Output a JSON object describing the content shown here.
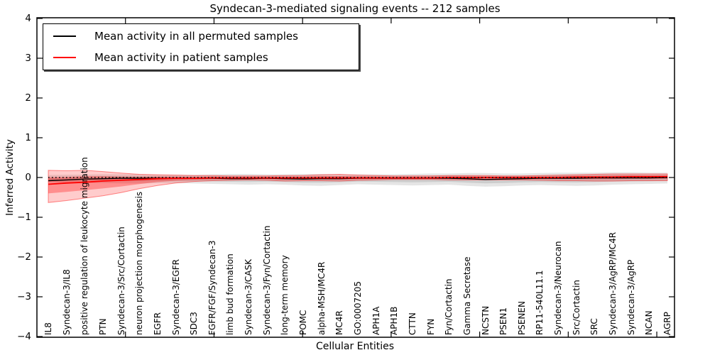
{
  "chart_data": {
    "type": "line",
    "title": "Syndecan-3-mediated signaling events -- 212 samples",
    "xlabel": "Cellular Entities",
    "ylabel": "Inferred Activity",
    "ylim": [
      -4,
      4
    ],
    "xlim": [
      0,
      36
    ],
    "yticks": [
      4,
      3,
      2,
      1,
      0,
      -1,
      -2,
      -3,
      -4
    ],
    "ytick_labels": [
      "4",
      "3",
      "2",
      "1",
      "0",
      "−1",
      "−2",
      "−3",
      "−4"
    ],
    "xticks": [
      5,
      10,
      15,
      20,
      25,
      30,
      35
    ],
    "grid": false,
    "legend_position": "upper left",
    "zero_line": {
      "y": 0,
      "style": "dotted",
      "color": "#000000"
    },
    "categories": [
      "IL8",
      "Syndecan-3/IL8",
      "positive regulation of leukocyte migration",
      "PTN",
      "Syndecan-3/Src/Cortactin",
      "neuron projection morphogenesis",
      "EGFR",
      "Syndecan-3/EGFR",
      "SDC3",
      "FGFR/FGF/Syndecan-3",
      "limb bud formation",
      "Syndecan-3/CASK",
      "Syndecan-3/Fyn/Cortactin",
      "long-term memory",
      "POMC",
      "alpha-MSH/MC4R",
      "MC4R",
      "GO:0007205",
      "APH1A",
      "APH1B",
      "CTTN",
      "FYN",
      "Fyn/Cortactin",
      "Gamma Secretase",
      "NCSTN",
      "PSEN1",
      "PSENEN",
      "RP11-540L11.1",
      "Syndecan-3/Neurocan",
      "Src/Cortactin",
      "SRC",
      "Syndecan-3/AgRP/MC4R",
      "Syndecan-3/AgRP",
      "NCAN",
      "AGRP"
    ],
    "series": [
      {
        "name": "Mean activity in all permuted samples",
        "color": "#000000",
        "values": [
          -0.08,
          -0.06,
          -0.04,
          -0.03,
          -0.02,
          -0.02,
          -0.02,
          -0.02,
          -0.02,
          -0.02,
          -0.03,
          -0.03,
          -0.02,
          -0.03,
          -0.04,
          -0.03,
          -0.03,
          -0.02,
          -0.02,
          -0.02,
          -0.02,
          -0.02,
          -0.02,
          -0.03,
          -0.05,
          -0.04,
          -0.03,
          -0.02,
          -0.02,
          -0.02,
          -0.01,
          -0.01,
          -0.01,
          -0.01,
          0.0
        ]
      },
      {
        "name": "Mean activity in patient samples",
        "color": "#ff0000",
        "values": [
          -0.17,
          -0.14,
          -0.12,
          -0.09,
          -0.07,
          -0.05,
          -0.03,
          -0.02,
          -0.02,
          -0.01,
          -0.01,
          -0.01,
          -0.01,
          -0.01,
          -0.01,
          -0.01,
          -0.01,
          -0.01,
          -0.01,
          -0.01,
          -0.01,
          -0.01,
          0.0,
          0.0,
          0.0,
          0.0,
          0.0,
          0.0,
          0.0,
          0.01,
          0.01,
          0.01,
          0.02,
          0.02,
          0.02
        ]
      }
    ],
    "bands": [
      {
        "name": "permuted-samples-range",
        "fill": "rgba(0,0,0,0.10)",
        "upper": [
          0.06,
          0.07,
          0.07,
          0.08,
          0.08,
          0.08,
          0.07,
          0.07,
          0.07,
          0.08,
          0.09,
          0.09,
          0.08,
          0.08,
          0.09,
          0.09,
          0.08,
          0.08,
          0.08,
          0.08,
          0.09,
          0.1,
          0.1,
          0.11,
          0.11,
          0.1,
          0.1,
          0.11,
          0.12,
          0.12,
          0.12,
          0.13,
          0.13,
          0.12,
          0.12
        ],
        "lower": [
          -0.12,
          -0.13,
          -0.13,
          -0.14,
          -0.15,
          -0.15,
          -0.14,
          -0.14,
          -0.15,
          -0.16,
          -0.17,
          -0.18,
          -0.17,
          -0.18,
          -0.2,
          -0.21,
          -0.19,
          -0.17,
          -0.18,
          -0.19,
          -0.2,
          -0.19,
          -0.18,
          -0.21,
          -0.23,
          -0.22,
          -0.2,
          -0.19,
          -0.2,
          -0.21,
          -0.2,
          -0.18,
          -0.17,
          -0.16,
          -0.15
        ]
      },
      {
        "name": "patient-samples-range",
        "fill": "rgba(255,0,0,0.20)",
        "edge": "rgba(255,0,0,0.45)",
        "upper": [
          0.18,
          0.17,
          0.18,
          0.15,
          0.11,
          0.08,
          0.07,
          0.06,
          0.05,
          0.05,
          0.04,
          0.04,
          0.04,
          0.05,
          0.05,
          0.07,
          0.08,
          0.06,
          0.05,
          0.04,
          0.04,
          0.04,
          0.05,
          0.05,
          0.05,
          0.04,
          0.04,
          0.05,
          0.06,
          0.07,
          0.08,
          0.09,
          0.09,
          0.09,
          0.09
        ],
        "lower": [
          -0.63,
          -0.58,
          -0.52,
          -0.46,
          -0.38,
          -0.28,
          -0.2,
          -0.14,
          -0.1,
          -0.08,
          -0.07,
          -0.06,
          -0.07,
          -0.09,
          -0.08,
          -0.08,
          -0.09,
          -0.07,
          -0.06,
          -0.05,
          -0.05,
          -0.05,
          -0.06,
          -0.06,
          -0.06,
          -0.06,
          -0.06,
          -0.07,
          -0.08,
          -0.08,
          -0.09,
          -0.09,
          -0.08,
          -0.08,
          -0.08
        ]
      }
    ]
  }
}
